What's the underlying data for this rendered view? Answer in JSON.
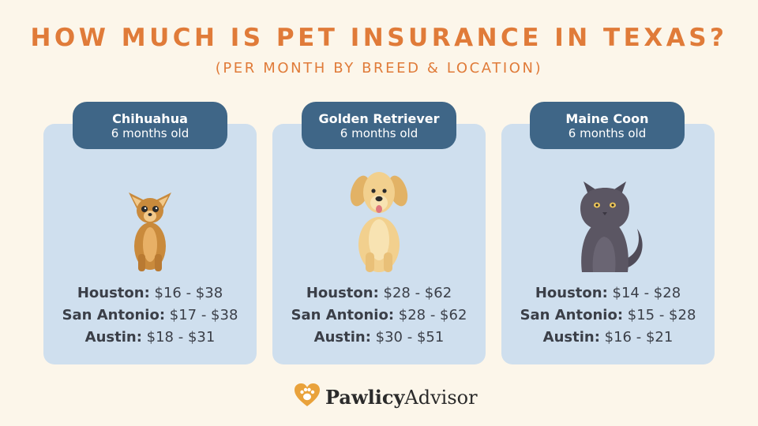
{
  "title": "HOW MUCH IS PET INSURANCE IN TEXAS?",
  "subtitle": "(PER MONTH BY BREED & LOCATION)",
  "cards": [
    {
      "breed": "Chihuahua",
      "age": "6 months old",
      "illustration": "chihuahua-illustration",
      "prices": [
        {
          "city": "Houston:",
          "range": "$16 - $38"
        },
        {
          "city": "San Antonio:",
          "range": "$17 - $38"
        },
        {
          "city": "Austin:",
          "range": "$18 - $31"
        }
      ]
    },
    {
      "breed": "Golden Retriever",
      "age": "6 months old",
      "illustration": "golden-retriever-illustration",
      "prices": [
        {
          "city": "Houston:",
          "range": "$28 - $62"
        },
        {
          "city": "San Antonio:",
          "range": "$28 - $62"
        },
        {
          "city": "Austin:",
          "range": "$30 - $51"
        }
      ]
    },
    {
      "breed": "Maine Coon",
      "age": "6 months old",
      "illustration": "maine-coon-illustration",
      "prices": [
        {
          "city": "Houston:",
          "range": "$14 - $28"
        },
        {
          "city": "San Antonio:",
          "range": "$15 - $28"
        },
        {
          "city": "Austin:",
          "range": "$16 - $21"
        }
      ]
    }
  ],
  "brand": {
    "name_bold": "Pawlicy",
    "name_regular": "Advisor",
    "logo_icon": "heart-paw-icon"
  },
  "colors": {
    "background": "#fcf6ea",
    "title": "#e07b39",
    "card": "#cfdfee",
    "header": "#3f6687",
    "price_text": "#3b3f48"
  }
}
